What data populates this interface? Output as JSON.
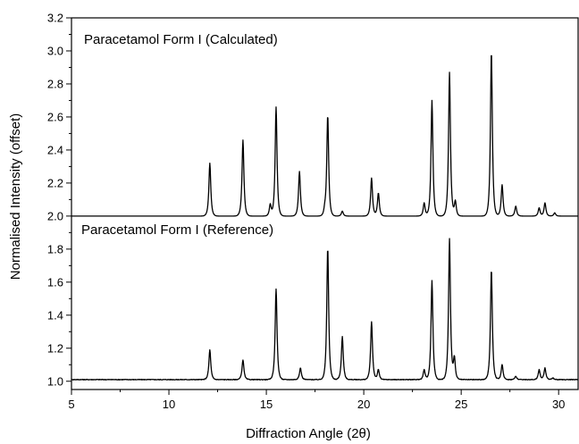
{
  "chart_data": {
    "type": "line",
    "xlabel": "Diffraction Angle (2θ)",
    "ylabel": "Normalised Intensity (offset)",
    "xlim": [
      5,
      31
    ],
    "ylim": [
      0.95,
      3.2
    ],
    "xticks": [
      5,
      10,
      15,
      20,
      25,
      30
    ],
    "yticks": [
      1.0,
      1.2,
      1.4,
      1.6,
      1.8,
      2.0,
      2.2,
      2.4,
      2.6,
      2.8,
      3.0,
      3.2
    ],
    "ytick_labels": [
      "1.0",
      "1.2",
      "1.4",
      "1.6",
      "1.8",
      "2.0",
      "2.2",
      "2.4",
      "2.6",
      "2.8",
      "3.0",
      "3.2"
    ],
    "grid": false,
    "annotations": [
      {
        "text": "Paracetamol Form I (Calculated)"
      },
      {
        "text": "Paracetamol Form I (Reference)"
      }
    ],
    "series": [
      {
        "baseline": 2.0,
        "color": "#000000",
        "peaks": [
          {
            "x": 12.1,
            "y": 2.32
          },
          {
            "x": 13.8,
            "y": 2.46
          },
          {
            "x": 15.2,
            "y": 2.07
          },
          {
            "x": 15.5,
            "y": 2.66
          },
          {
            "x": 16.7,
            "y": 2.27
          },
          {
            "x": 18.0,
            "y": 2.03
          },
          {
            "x": 18.15,
            "y": 2.61
          },
          {
            "x": 18.9,
            "y": 2.03
          },
          {
            "x": 20.4,
            "y": 2.23
          },
          {
            "x": 20.75,
            "y": 2.14
          },
          {
            "x": 23.1,
            "y": 2.08
          },
          {
            "x": 23.5,
            "y": 2.7
          },
          {
            "x": 24.4,
            "y": 2.87
          },
          {
            "x": 24.7,
            "y": 2.09
          },
          {
            "x": 26.55,
            "y": 3.0
          },
          {
            "x": 27.1,
            "y": 2.19
          },
          {
            "x": 27.8,
            "y": 2.06
          },
          {
            "x": 29.0,
            "y": 2.05
          },
          {
            "x": 29.3,
            "y": 2.08
          },
          {
            "x": 29.8,
            "y": 2.02
          }
        ]
      },
      {
        "baseline": 1.01,
        "color": "#000000",
        "peaks": [
          {
            "x": 12.1,
            "y": 1.19
          },
          {
            "x": 13.8,
            "y": 1.13
          },
          {
            "x": 15.5,
            "y": 1.56
          },
          {
            "x": 16.75,
            "y": 1.08
          },
          {
            "x": 18.15,
            "y": 1.81
          },
          {
            "x": 18.9,
            "y": 1.27
          },
          {
            "x": 20.4,
            "y": 1.36
          },
          {
            "x": 20.75,
            "y": 1.07
          },
          {
            "x": 23.1,
            "y": 1.07
          },
          {
            "x": 23.5,
            "y": 1.61
          },
          {
            "x": 24.4,
            "y": 1.86
          },
          {
            "x": 24.65,
            "y": 1.14
          },
          {
            "x": 26.55,
            "y": 1.68
          },
          {
            "x": 27.1,
            "y": 1.1
          },
          {
            "x": 27.8,
            "y": 1.03
          },
          {
            "x": 29.0,
            "y": 1.07
          },
          {
            "x": 29.3,
            "y": 1.08
          },
          {
            "x": 29.7,
            "y": 1.02
          }
        ]
      }
    ]
  }
}
